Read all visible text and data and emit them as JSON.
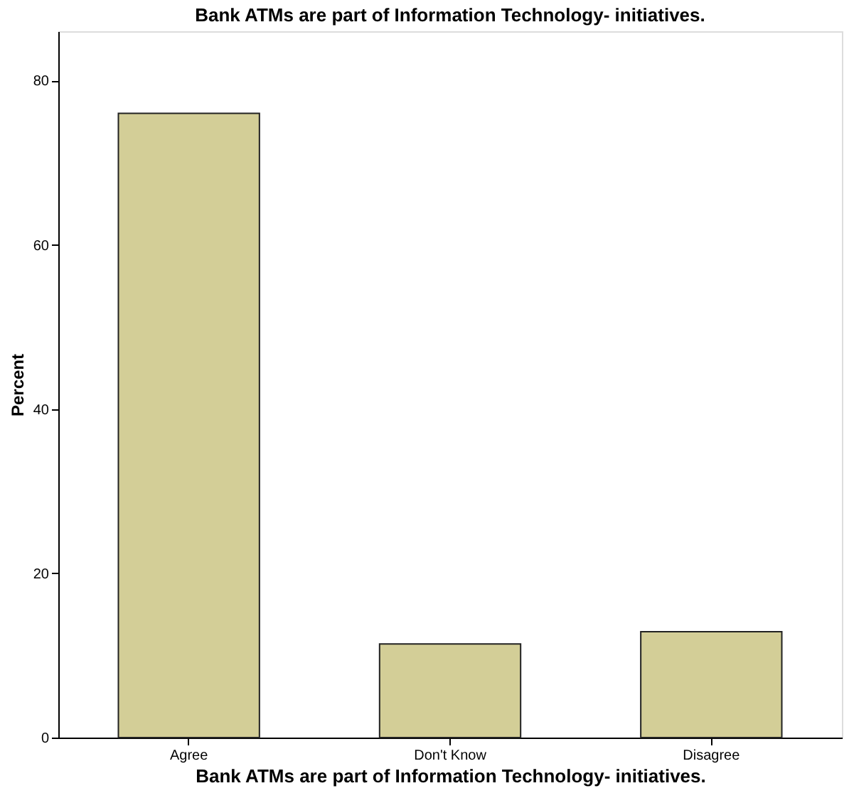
{
  "chart_data": {
    "type": "bar",
    "title": "Bank ATMs are part of Information Technology- initiatives.",
    "xlabel": "Bank ATMs are part of Information Technology- initiatives.",
    "ylabel": "Percent",
    "categories": [
      "Agree",
      "Don't Know",
      "Disagree"
    ],
    "values": [
      76.0,
      11.4,
      12.9
    ],
    "color": "#d3ce97",
    "ylim": [
      0,
      86
    ],
    "yticks": [
      0,
      20,
      40,
      60,
      80
    ],
    "grid": false
  }
}
